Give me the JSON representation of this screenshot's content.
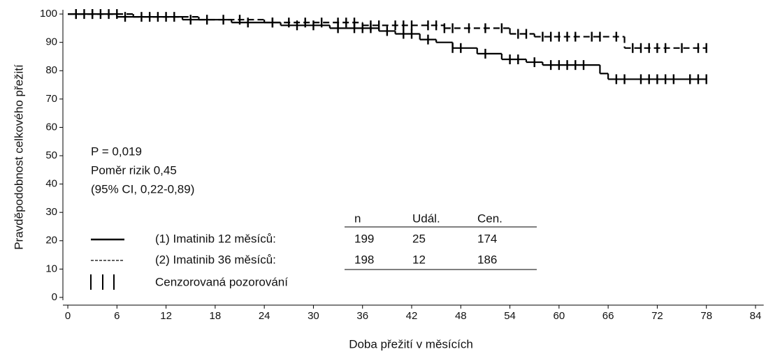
{
  "chart_data": {
    "type": "km",
    "xlabel": "Doba přežití v měsících",
    "ylabel": "Pravděpodobnost celkového přežití",
    "xlim": [
      -0.6,
      85
    ],
    "ylim": [
      -1,
      101.5
    ],
    "xticks": [
      0,
      6,
      12,
      18,
      24,
      30,
      36,
      42,
      48,
      54,
      60,
      66,
      72,
      78,
      84
    ],
    "yticks": [
      0,
      10,
      20,
      30,
      40,
      50,
      60,
      70,
      80,
      90,
      100
    ],
    "series": [
      {
        "name": "(1) Imatinib 12 měsíců:",
        "color": "#000000",
        "style": "solid",
        "x": [
          0,
          6,
          14,
          20,
          26,
          32,
          38,
          40,
          43,
          45,
          47,
          50,
          53,
          56,
          58,
          65,
          66,
          78
        ],
        "values": [
          100,
          99,
          98,
          97,
          96,
          95,
          94,
          93,
          91,
          90,
          88,
          86,
          84,
          83,
          82,
          79,
          77,
          77
        ],
        "censored_x": [
          1,
          2,
          3,
          5,
          7,
          10,
          12,
          15,
          19,
          22,
          25,
          28,
          30,
          33,
          35,
          36,
          37,
          39,
          41,
          42,
          44,
          47,
          48,
          51,
          54,
          55,
          57,
          59,
          60,
          61,
          62,
          63,
          67,
          68,
          70,
          71,
          72,
          73,
          74,
          76,
          77,
          78
        ]
      },
      {
        "name": "(2) Imatinib 36 měsíců:",
        "color": "#000000",
        "style": "dashed",
        "x": [
          0,
          8,
          16,
          24,
          36,
          46,
          54,
          57,
          68,
          78
        ],
        "values": [
          100,
          99,
          98,
          97,
          96,
          95,
          93,
          92,
          88,
          88
        ],
        "censored_x": [
          1,
          3,
          4,
          6,
          9,
          11,
          13,
          17,
          21,
          25,
          27,
          29,
          31,
          33,
          34,
          35,
          37,
          38,
          40,
          41,
          42,
          44,
          45,
          46,
          47,
          49,
          51,
          53,
          55,
          56,
          58,
          59,
          60,
          61,
          62,
          64,
          65,
          67,
          69,
          70,
          71,
          72,
          73,
          75,
          77,
          78
        ]
      }
    ],
    "annotations": [
      "P = 0,019",
      "Poměr rizik 0,45",
      "(95% CI, 0,22-0,89)"
    ],
    "table": {
      "columns": [
        "n",
        "Udál.",
        "Cen."
      ],
      "rows": [
        [
          199,
          25,
          174
        ],
        [
          198,
          12,
          186
        ]
      ]
    },
    "censor_legend": "Cenzorovaná pozorování"
  }
}
